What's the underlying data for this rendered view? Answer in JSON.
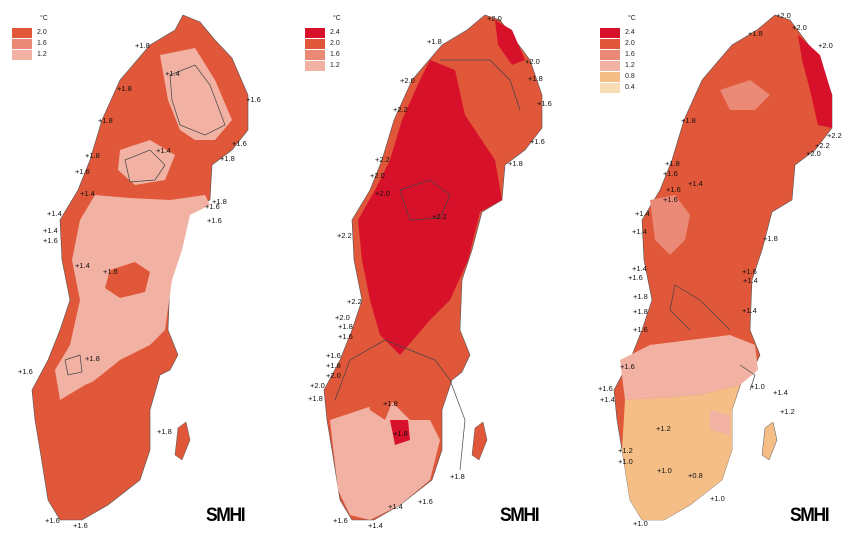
{
  "maps": [
    {
      "unit": "°C",
      "legend": [
        {
          "value": "2.0",
          "color": "#e0573a"
        },
        {
          "value": "1.6",
          "color": "#ea8a76"
        },
        {
          "value": "1.2",
          "color": "#f1b2a4"
        }
      ],
      "labels": [
        "+1.8",
        "+1.4",
        "+1.8",
        "+1.6",
        "+1.8",
        "+1.4",
        "+1.6",
        "+1.8",
        "+1.6",
        "+1.8",
        "+1.6",
        "+1.4",
        "+1.8",
        "+1.4",
        "+1.6",
        "+1.4",
        "+1.6",
        "+1.4",
        "+1.6",
        "+1.8",
        "+1.6",
        "+1.8",
        "+1.6"
      ],
      "logo": "SMHI"
    },
    {
      "unit": "°C",
      "legend": [
        {
          "value": "2.4",
          "color": "#d8112a"
        },
        {
          "value": "2.0",
          "color": "#e0573a"
        },
        {
          "value": "1.6",
          "color": "#ea8a76"
        },
        {
          "value": "1.2",
          "color": "#f1b2a4"
        }
      ],
      "labels": [
        "+2.0",
        "+1.8",
        "+2.0",
        "+1.8",
        "+2.0",
        "+1.6",
        "+1.6",
        "+2.2",
        "+1.8",
        "+2.2",
        "+2.0",
        "+2.0",
        "+2.2",
        "+2.2",
        "+2.2",
        "+2.0",
        "+1.8",
        "+1.6",
        "+1.6",
        "+1.8",
        "+2.0",
        "+2.0",
        "+1.8",
        "+1.8",
        "+1.8",
        "+1.8",
        "+1.6",
        "+1.4",
        "+1.6"
      ],
      "logo": "SMHI"
    },
    {
      "unit": "°C",
      "legend": [
        {
          "value": "2.4",
          "color": "#d8112a"
        },
        {
          "value": "2.0",
          "color": "#e0573a"
        },
        {
          "value": "1.6",
          "color": "#ea8a76"
        },
        {
          "value": "1.2",
          "color": "#f1b2a4"
        },
        {
          "value": "0.8",
          "color": "#f4be86"
        },
        {
          "value": "0.4",
          "color": "#f8dcb4"
        }
      ],
      "labels": [
        "+2.0",
        "+1.8",
        "+2.0",
        "+2.0",
        "+1.8",
        "+2.2",
        "+2.2",
        "+2.0",
        "+1.8",
        "+1.6",
        "+1.4",
        "+1.6",
        "+1.6",
        "+1.4",
        "+1.4",
        "+1.8",
        "+1.4",
        "+1.6",
        "+1.6",
        "+1.4",
        "+1.8",
        "+1.8",
        "+1.4",
        "+1.6",
        "+1.6",
        "+1.6",
        "+1.4",
        "+1.0",
        "+1.4",
        "+1.2",
        "+1.2",
        "+1.2",
        "+1.0",
        "+1.0",
        "+0.8",
        "+1.0",
        "+1.0"
      ],
      "logo": "SMHI"
    }
  ]
}
